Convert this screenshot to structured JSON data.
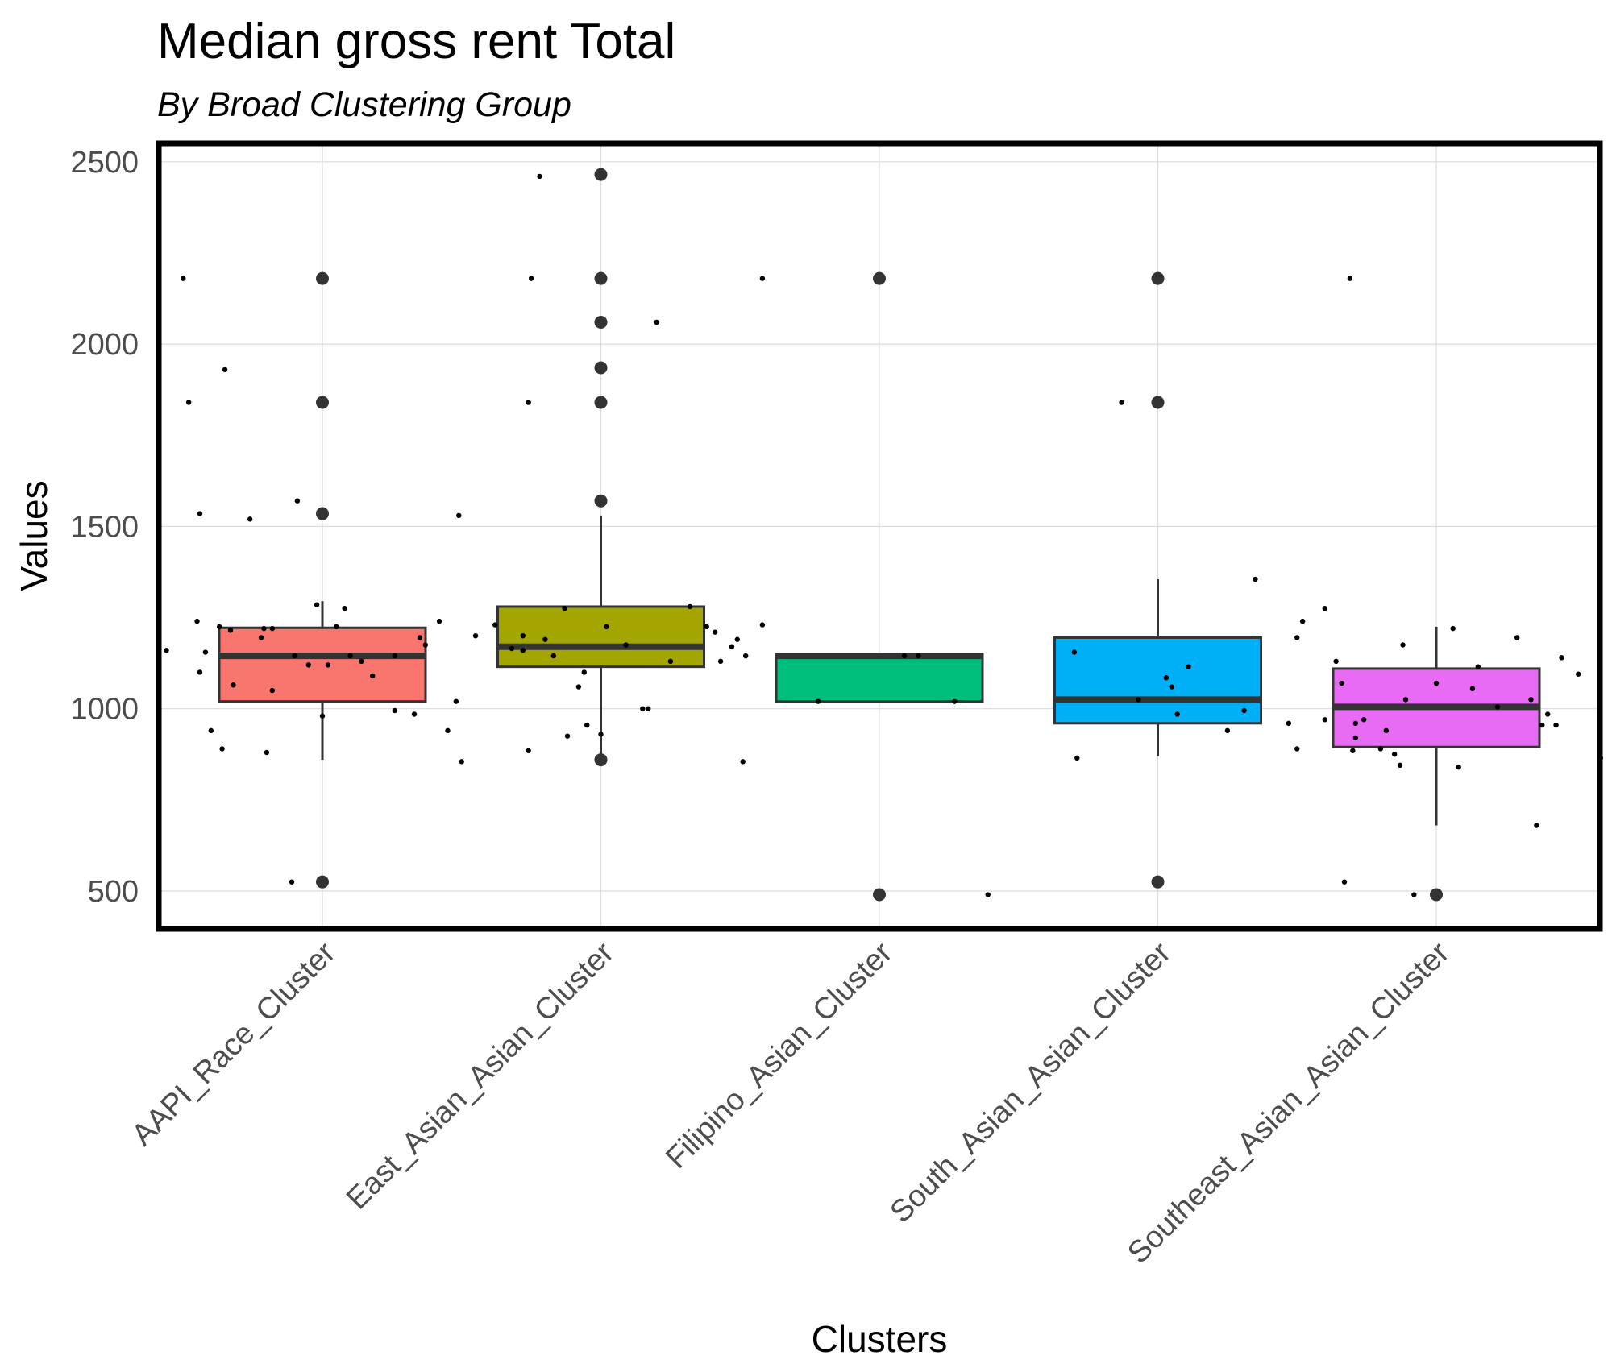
{
  "chart_data": {
    "type": "box",
    "title": "Median gross rent Total",
    "subtitle": "By Broad Clustering Group",
    "xlabel": "Clusters",
    "ylabel": "Values",
    "ylim": [
      400,
      2555
    ],
    "yticks": [
      500,
      1000,
      1500,
      2000,
      2500
    ],
    "grid": true,
    "categories": [
      "AAPI_Race_Cluster",
      "East_Asian_Asian_Cluster",
      "Filipino_Asian_Cluster",
      "South_Asian_Asian_Cluster",
      "Southeast_Asian_Asian_Cluster"
    ],
    "colors": [
      "#F8766D",
      "#A3A500",
      "#00BF7D",
      "#00B0F6",
      "#E76BF3"
    ],
    "boxes": [
      {
        "q1": 1020,
        "median": 1145,
        "q3": 1222,
        "whisker_low": 860,
        "whisker_high": 1295,
        "outliers": [
          2180,
          1840,
          1535,
          525
        ]
      },
      {
        "q1": 1115,
        "median": 1170,
        "q3": 1280,
        "whisker_low": 860,
        "whisker_high": 1530,
        "outliers": [
          2465,
          2180,
          2060,
          1935,
          1840,
          1570,
          860
        ]
      },
      {
        "q1": 1020,
        "median": 1145,
        "q3": 1150,
        "whisker_low": 1020,
        "whisker_high": 1150,
        "outliers": [
          2180,
          490
        ]
      },
      {
        "q1": 960,
        "median": 1025,
        "q3": 1195,
        "whisker_low": 870,
        "whisker_high": 1355,
        "outliers": [
          2180,
          1840,
          525
        ]
      },
      {
        "q1": 895,
        "median": 1005,
        "q3": 1110,
        "whisker_low": 680,
        "whisker_high": 1225,
        "outliers": [
          490
        ]
      }
    ],
    "points": [
      [
        [
          -0.56,
          1160
        ],
        [
          -0.5,
          2180
        ],
        [
          -0.48,
          1840
        ],
        [
          -0.45,
          1240
        ],
        [
          -0.44,
          1535
        ],
        [
          -0.4,
          940
        ],
        [
          -0.36,
          890
        ],
        [
          -0.32,
          1065
        ],
        [
          -0.22,
          1195
        ],
        [
          -0.18,
          1220
        ],
        [
          -0.11,
          525
        ],
        [
          -0.1,
          1145
        ],
        [
          -0.05,
          1120
        ],
        [
          -0.02,
          1285
        ],
        [
          0.0,
          980
        ],
        [
          0.02,
          1120
        ],
        [
          0.05,
          1225
        ],
        [
          0.1,
          1145
        ],
        [
          0.14,
          1130
        ],
        [
          0.18,
          1090
        ],
        [
          0.26,
          995
        ],
        [
          0.33,
          985
        ],
        [
          0.37,
          1175
        ],
        [
          0.48,
          1020
        ],
        [
          0.62,
          1230
        ],
        [
          0.72,
          1200
        ],
        [
          0.74,
          885
        ],
        [
          0.8,
          1190
        ],
        [
          0.87,
          1275
        ],
        [
          0.88,
          925
        ],
        [
          0.94,
          1100
        ],
        [
          1.02,
          1225
        ],
        [
          -0.18,
          1050
        ],
        [
          0.5,
          855
        ]
      ],
      [
        [
          -0.44,
          1100
        ],
        [
          -0.42,
          1155
        ],
        [
          -0.37,
          1225
        ],
        [
          -0.35,
          1930
        ],
        [
          -0.33,
          1215
        ],
        [
          -0.26,
          1520
        ],
        [
          -0.21,
          1220
        ],
        [
          -0.2,
          880
        ],
        [
          -0.09,
          1570
        ],
        [
          0.08,
          1275
        ],
        [
          0.26,
          1145
        ],
        [
          0.35,
          1195
        ],
        [
          0.42,
          1240
        ],
        [
          0.45,
          940
        ],
        [
          0.49,
          1530
        ],
        [
          0.55,
          1200
        ],
        [
          0.68,
          1165
        ],
        [
          0.72,
          1160
        ],
        [
          0.78,
          2460
        ],
        [
          0.83,
          1145
        ],
        [
          0.92,
          1060
        ],
        [
          0.95,
          955
        ],
        [
          1.0,
          930
        ],
        [
          1.09,
          1175
        ],
        [
          1.17,
          1000
        ],
        [
          1.2,
          2060
        ],
        [
          1.25,
          1130
        ],
        [
          1.32,
          1280
        ],
        [
          1.38,
          1225
        ],
        [
          1.41,
          1210
        ],
        [
          1.43,
          1130
        ],
        [
          1.47,
          1170
        ],
        [
          1.49,
          1190
        ],
        [
          1.51,
          855
        ],
        [
          1.52,
          1145
        ],
        [
          1.58,
          1230
        ],
        [
          0.75,
          2180
        ],
        [
          0.74,
          1840
        ],
        [
          1.15,
          1000
        ]
      ],
      [
        [
          1.58,
          2180
        ],
        [
          1.78,
          1020
        ],
        [
          2.09,
          1145
        ],
        [
          2.14,
          1145
        ],
        [
          2.27,
          1020
        ],
        [
          2.39,
          490
        ],
        [
          2.7,
          1155
        ]
      ],
      [
        [
          2.71,
          865
        ],
        [
          2.93,
          1025
        ],
        [
          3.03,
          1085
        ],
        [
          3.05,
          1060
        ],
        [
          3.07,
          985
        ],
        [
          3.11,
          1115
        ],
        [
          3.25,
          940
        ],
        [
          3.31,
          995
        ],
        [
          3.35,
          1355
        ],
        [
          3.5,
          890
        ],
        [
          3.5,
          1195
        ],
        [
          3.52,
          1240
        ],
        [
          3.6,
          970
        ],
        [
          3.6,
          1275
        ],
        [
          3.66,
          1070
        ],
        [
          3.67,
          525
        ],
        [
          3.7,
          885
        ],
        [
          3.71,
          960
        ],
        [
          3.69,
          2180
        ],
        [
          3.47,
          960
        ],
        [
          2.87,
          1840
        ]
      ],
      [
        [
          3.64,
          1130
        ],
        [
          3.71,
          920
        ],
        [
          3.74,
          970
        ],
        [
          3.8,
          890
        ],
        [
          3.82,
          940
        ],
        [
          3.85,
          875
        ],
        [
          3.87,
          845
        ],
        [
          3.88,
          1175
        ],
        [
          3.89,
          1025
        ],
        [
          3.92,
          490
        ],
        [
          4.0,
          1070
        ],
        [
          4.06,
          1220
        ],
        [
          4.08,
          840
        ],
        [
          4.13,
          1055
        ],
        [
          4.15,
          1115
        ],
        [
          4.22,
          1005
        ],
        [
          4.29,
          1195
        ],
        [
          4.34,
          1025
        ],
        [
          4.36,
          680
        ],
        [
          4.38,
          955
        ],
        [
          4.4,
          985
        ],
        [
          4.43,
          955
        ],
        [
          4.45,
          1140
        ],
        [
          4.51,
          1095
        ],
        [
          4.59,
          865
        ],
        [
          4.69,
          1225
        ],
        [
          4.71,
          925
        ],
        [
          4.78,
          690
        ]
      ]
    ]
  }
}
